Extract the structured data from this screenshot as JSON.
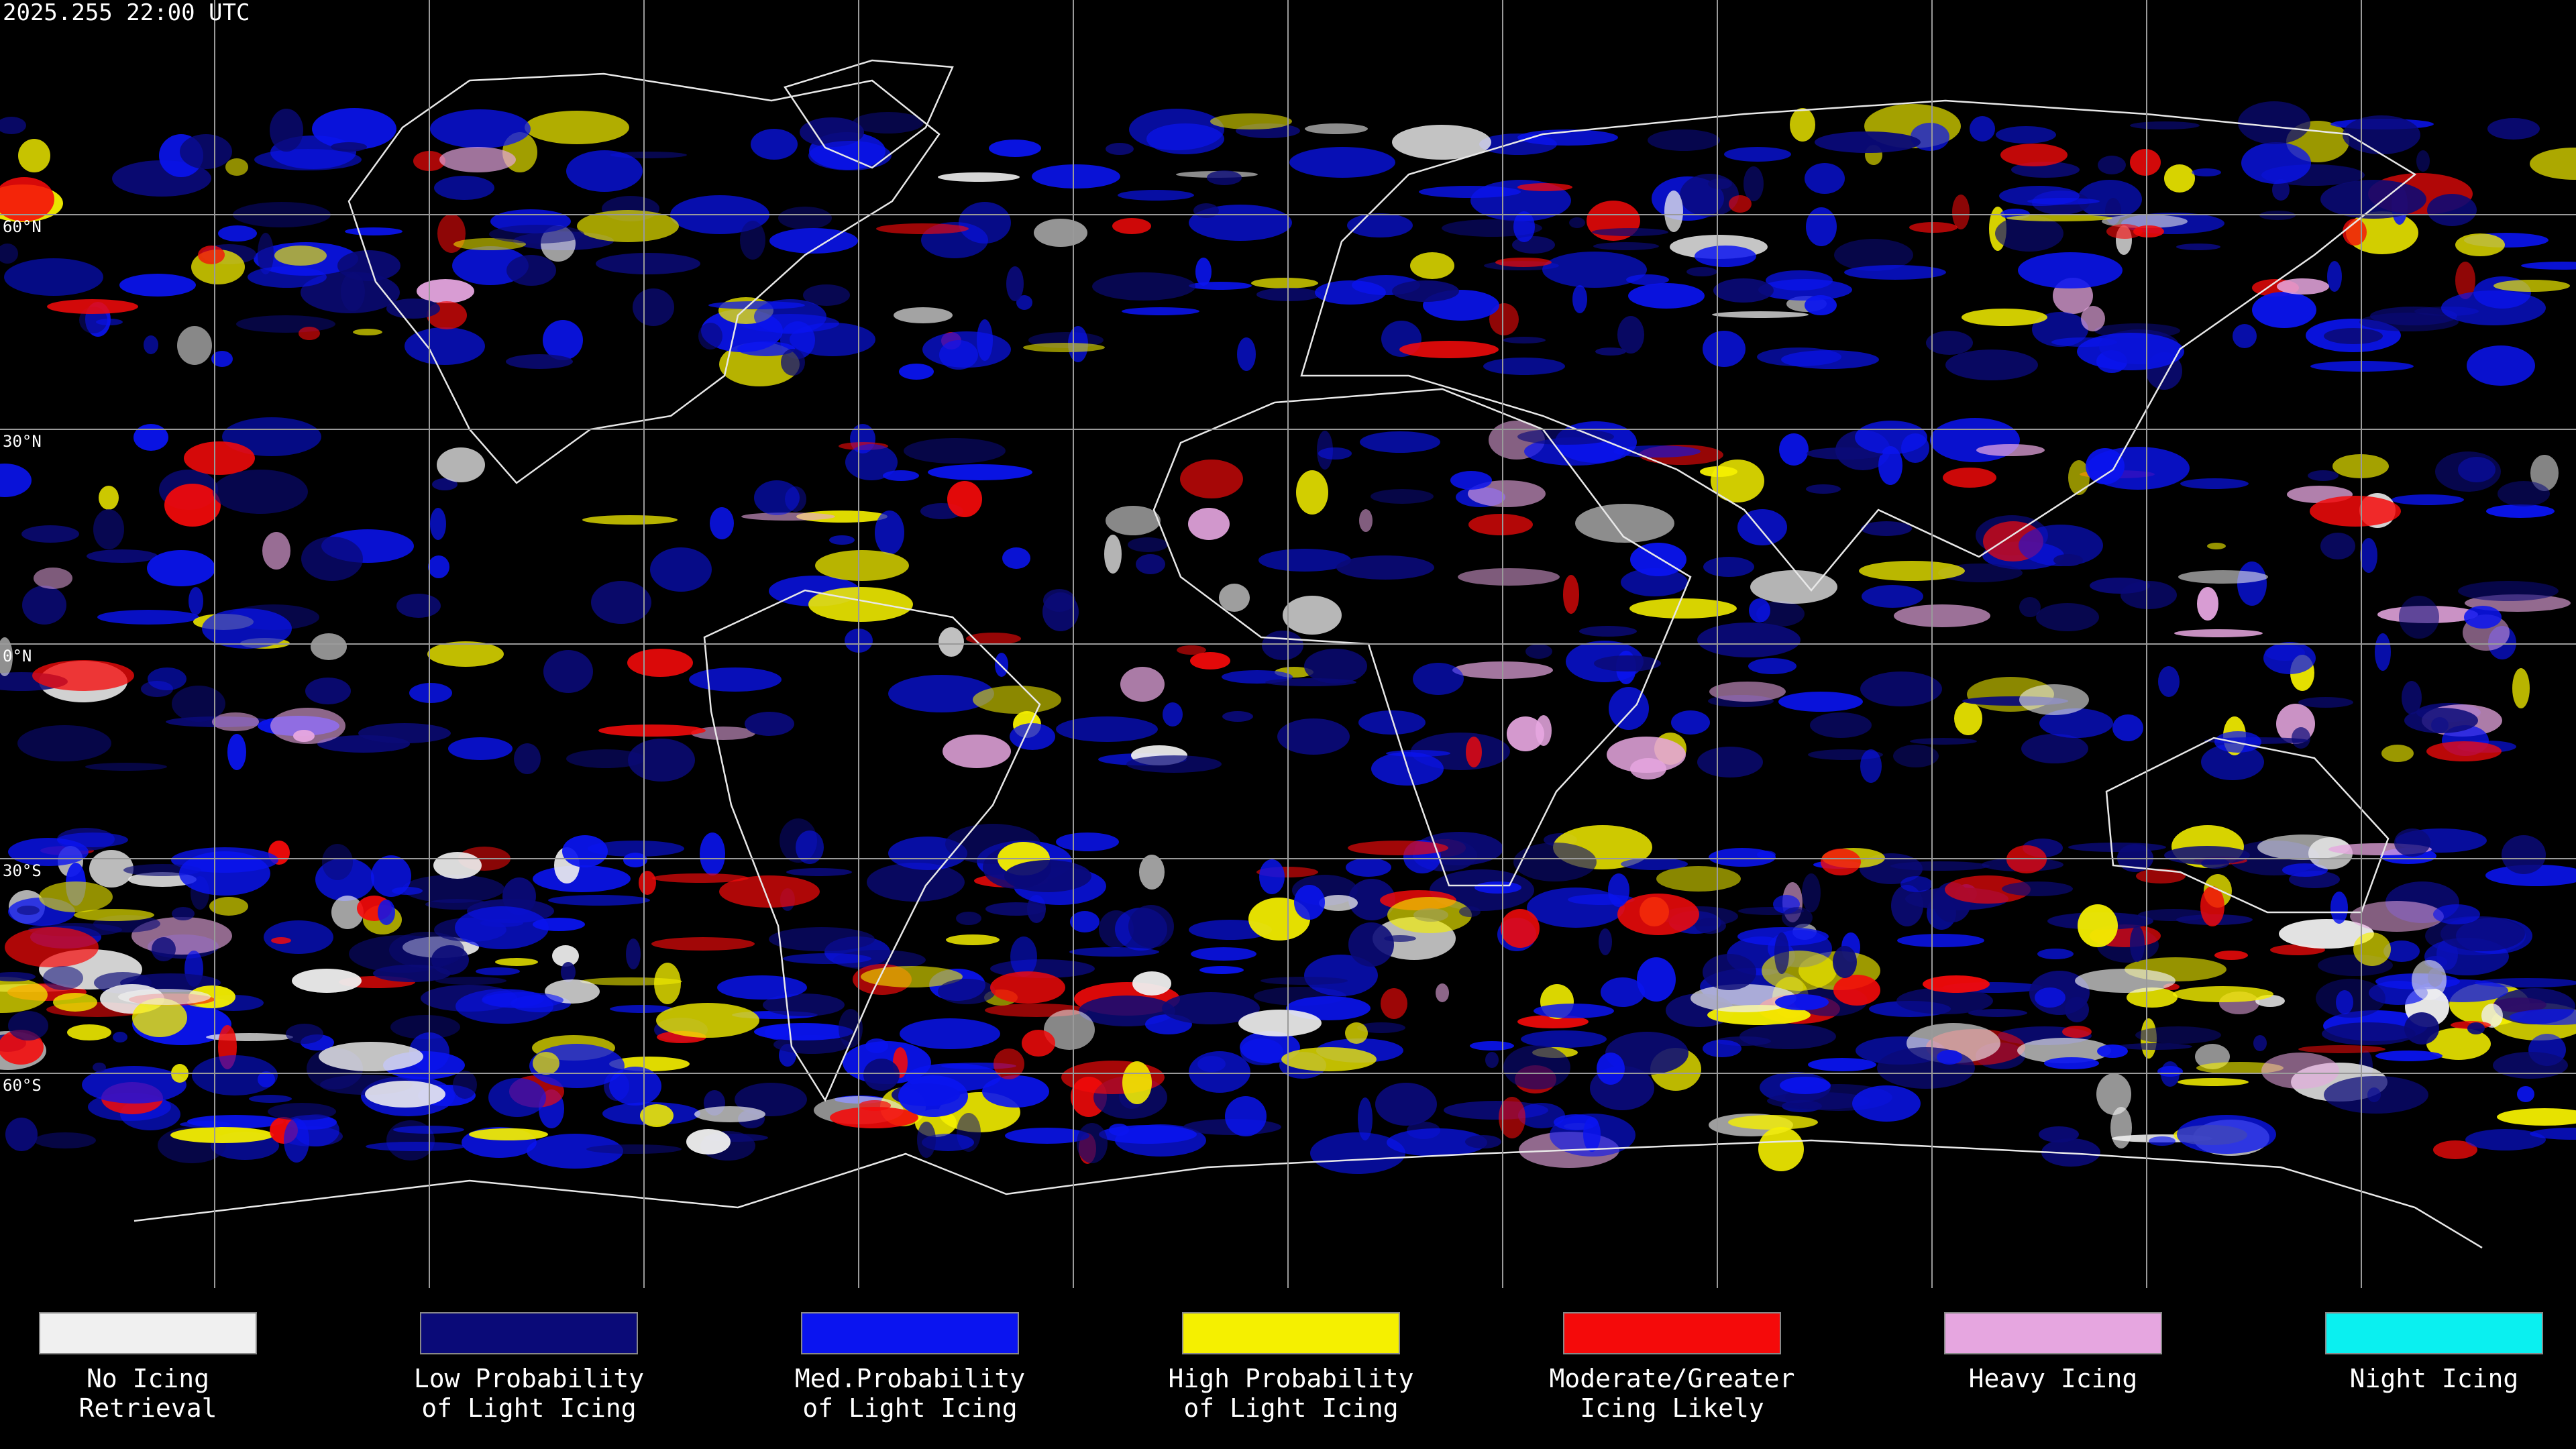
{
  "header": {
    "title": "2025.255 22:00 UTC"
  },
  "latitude_labels": [
    "60°N",
    "30°N",
    "0°N",
    "30°S",
    "60°S"
  ],
  "legend": [
    {
      "lines": [
        "No Icing",
        "Retrieval"
      ],
      "color": "#f0f0f0"
    },
    {
      "lines": [
        "Low Probability",
        "of Light Icing"
      ],
      "color": "#0a0a78"
    },
    {
      "lines": [
        "Med.Probability",
        "of Light Icing"
      ],
      "color": "#0a14f0"
    },
    {
      "lines": [
        "High Probability",
        "of Light Icing"
      ],
      "color": "#f5f000"
    },
    {
      "lines": [
        "Moderate/Greater",
        "Icing Likely"
      ],
      "color": "#f50a0a"
    },
    {
      "lines": [
        "Heavy Icing"
      ],
      "color": "#e6a6e0"
    },
    {
      "lines": [
        "Night Icing"
      ],
      "color": "#0af0f0"
    }
  ]
}
